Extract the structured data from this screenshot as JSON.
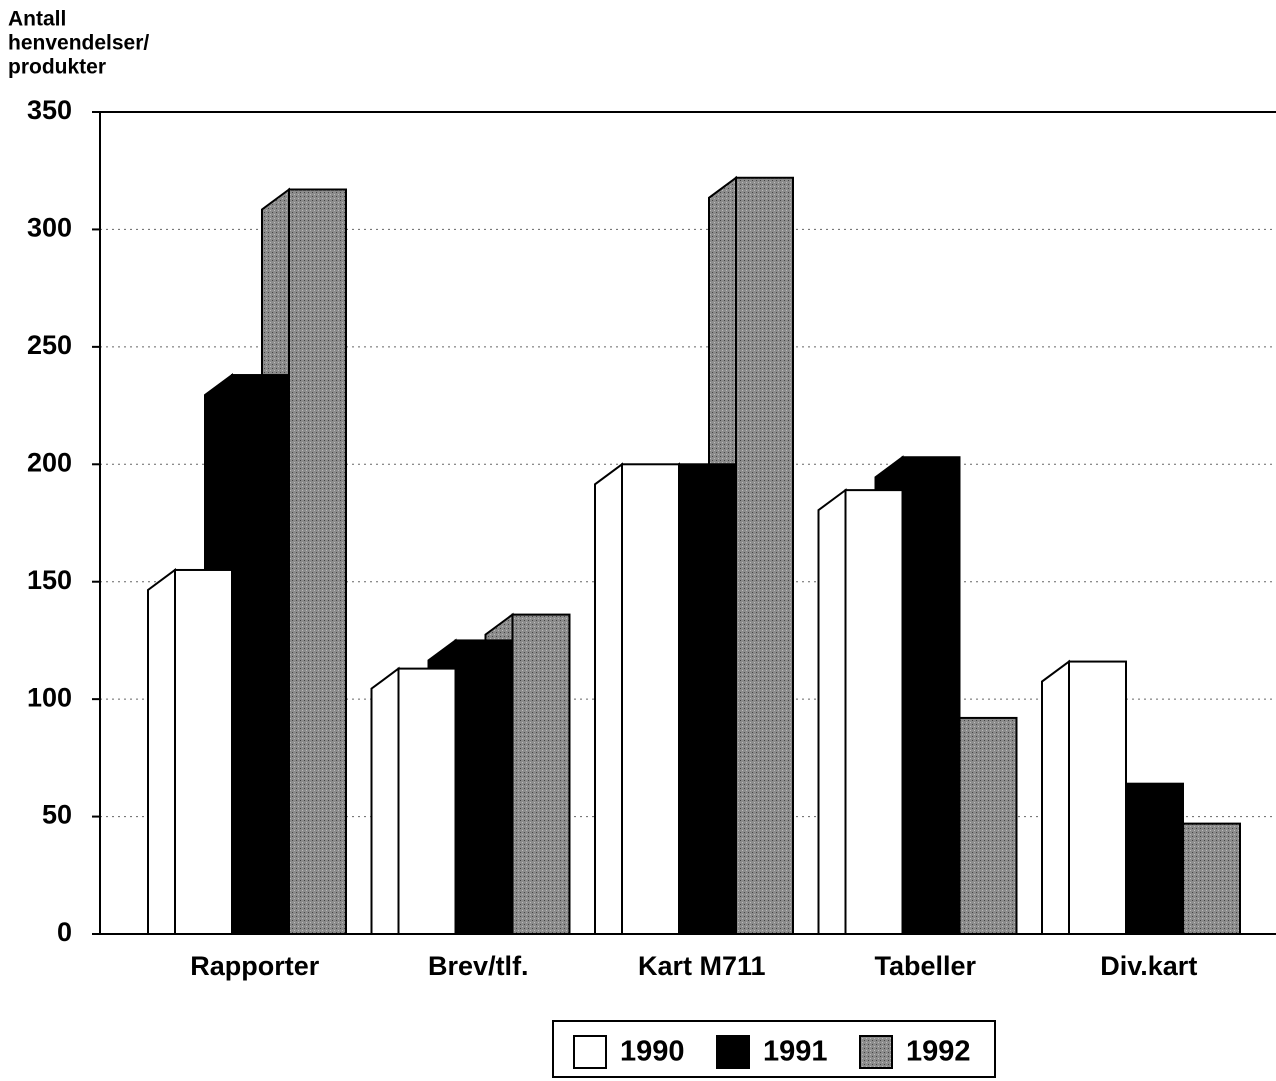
{
  "chart_data": {
    "type": "bar3d",
    "ylabel": [
      "Antall",
      "henvendelser/",
      "produkter"
    ],
    "categories": [
      "Rapporter",
      "Brev/tlf.",
      "Kart M711",
      "Tabeller",
      "Div.kart"
    ],
    "series": [
      {
        "name": "1990",
        "color": "#ffffff",
        "values": [
          155,
          113,
          200,
          189,
          116
        ]
      },
      {
        "name": "1991",
        "color": "#000000",
        "values": [
          238,
          125,
          200,
          203,
          64
        ]
      },
      {
        "name": "1992",
        "color": "#8c8c8c",
        "values": [
          317,
          136,
          322,
          92,
          47
        ]
      }
    ],
    "ylim": [
      0,
      350
    ],
    "yticks": [
      0,
      50,
      100,
      150,
      200,
      250,
      300,
      350
    ],
    "grid": true,
    "legend": "bottom"
  }
}
